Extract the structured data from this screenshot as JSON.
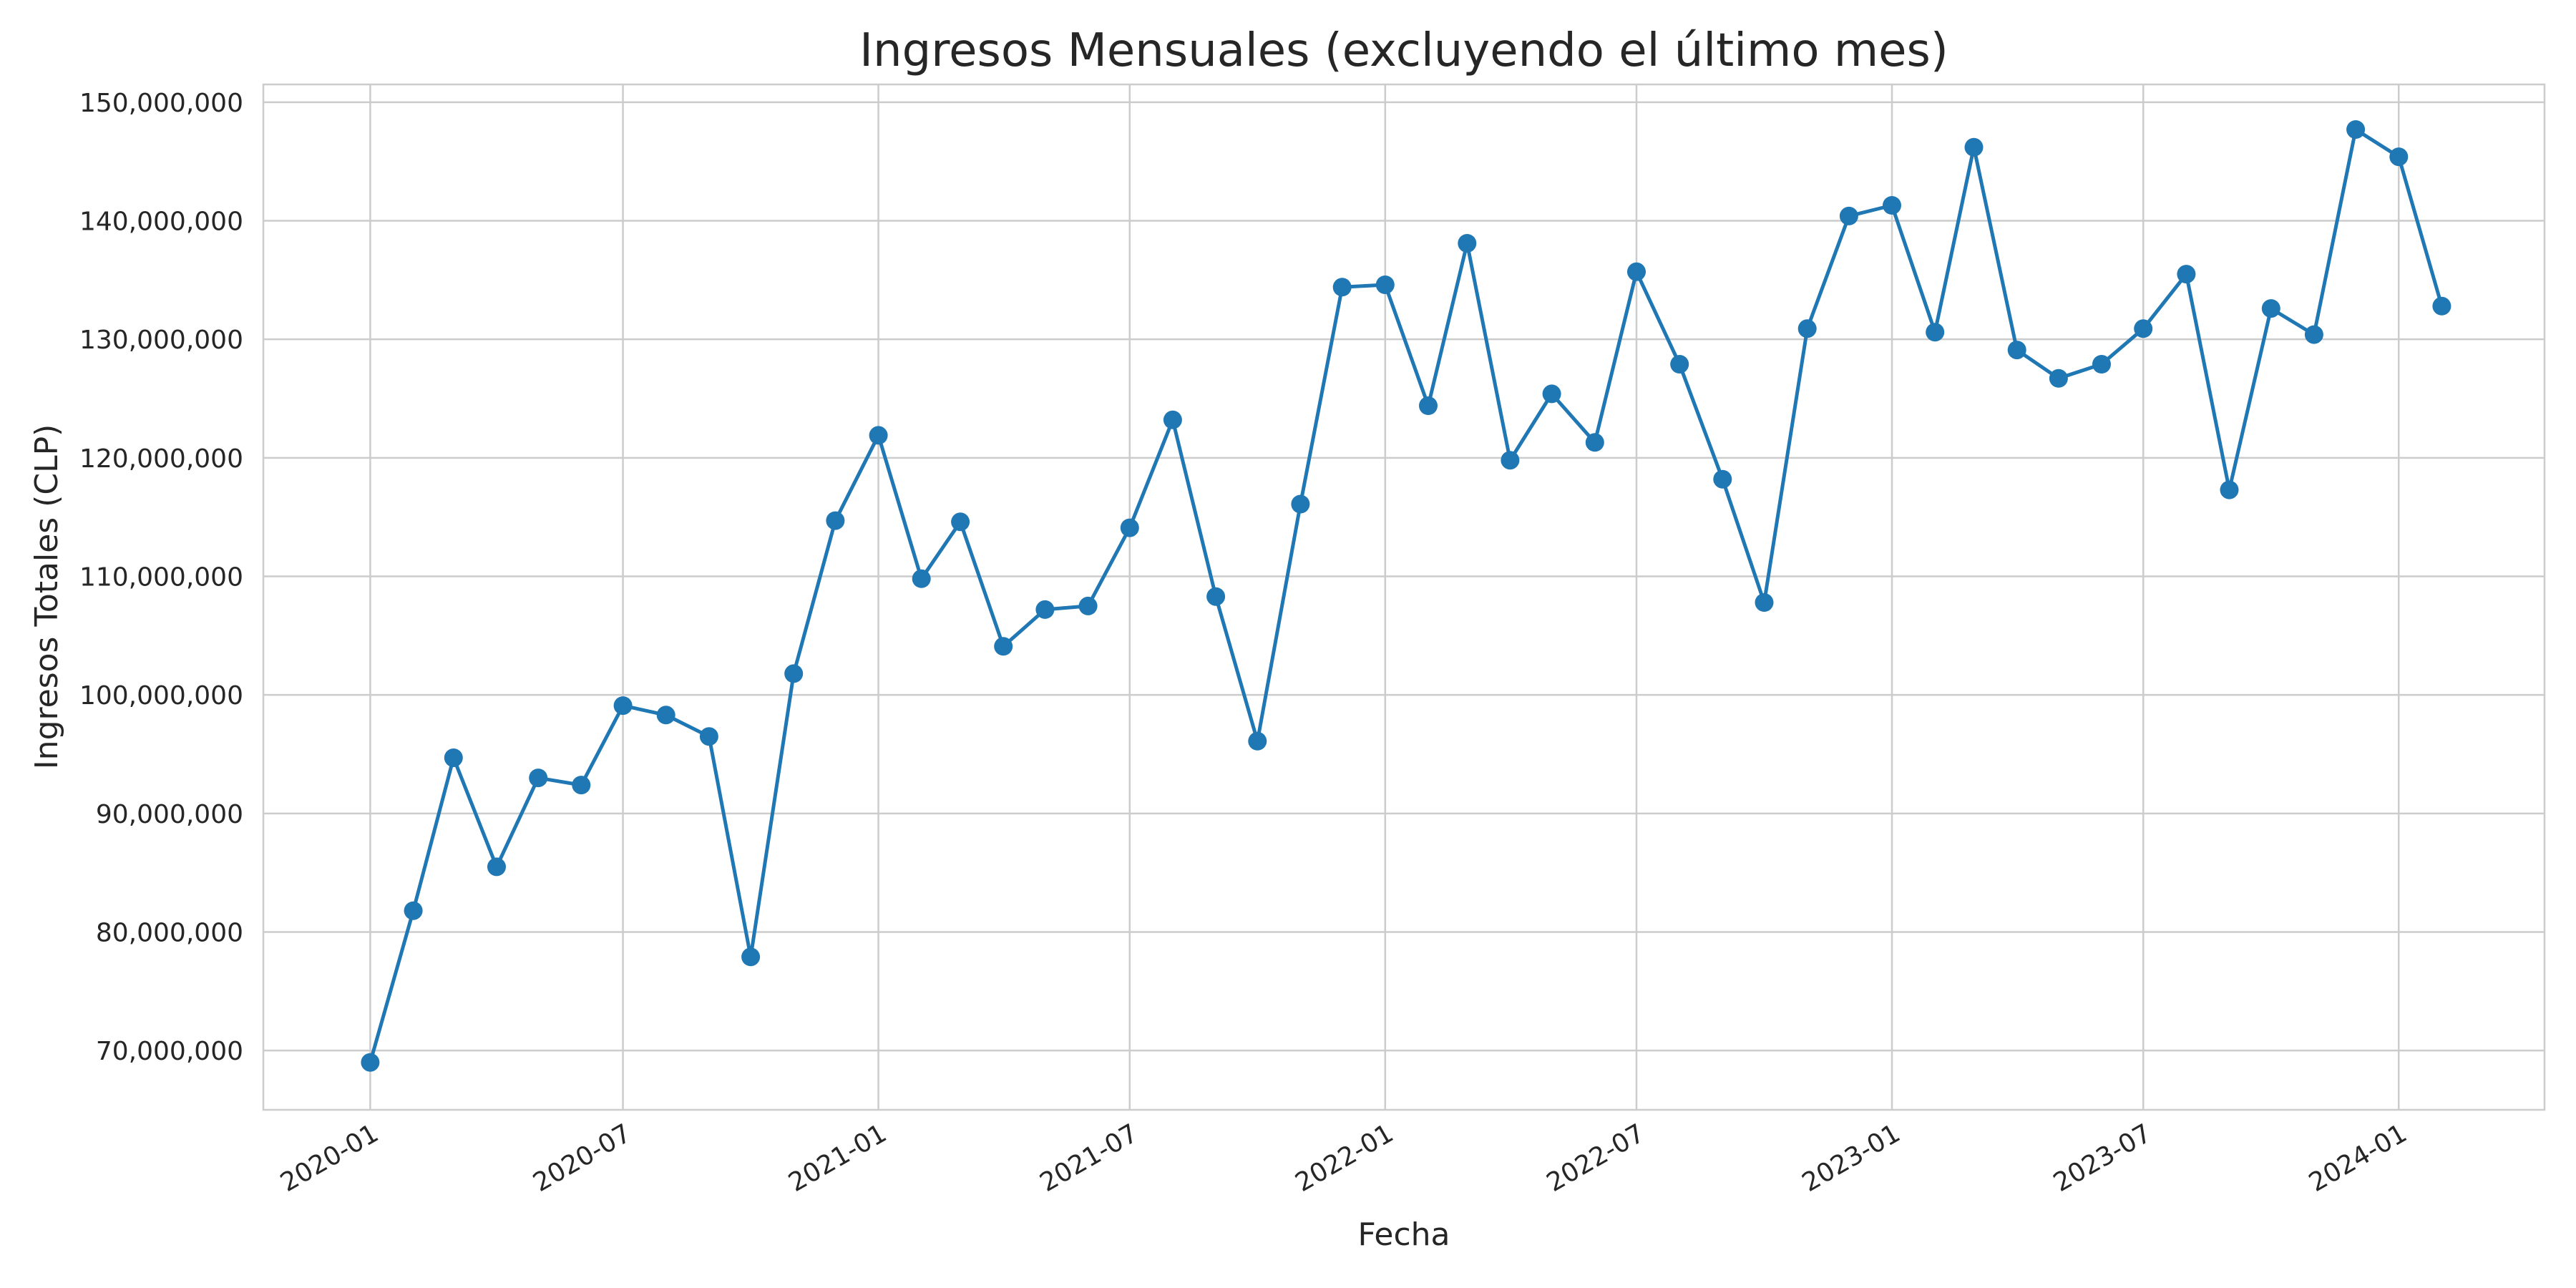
{
  "chart_data": {
    "type": "line",
    "title": "Ingresos Mensuales (excluyendo el último mes)",
    "xlabel": "Fecha",
    "ylabel": "Ingresos Totales (CLP)",
    "ylim": [
      65000000,
      151500000
    ],
    "xlim": [
      "2019-10-16",
      "2024-04-15"
    ],
    "grid": true,
    "color": "#1f77b4",
    "x_ticks": [
      "2020-01",
      "2020-07",
      "2021-01",
      "2021-07",
      "2022-01",
      "2022-07",
      "2023-01",
      "2023-07",
      "2024-01"
    ],
    "y_ticks": [
      "70,000,000",
      "80,000,000",
      "90,000,000",
      "100,000,000",
      "110,000,000",
      "120,000,000",
      "130,000,000",
      "140,000,000",
      "150,000,000"
    ],
    "y_tick_values": [
      70000000,
      80000000,
      90000000,
      100000000,
      110000000,
      120000000,
      130000000,
      140000000,
      150000000
    ],
    "x": [
      "2020-01",
      "2020-02",
      "2020-03",
      "2020-04",
      "2020-05",
      "2020-06",
      "2020-07",
      "2020-08",
      "2020-09",
      "2020-10",
      "2020-11",
      "2020-12",
      "2021-01",
      "2021-02",
      "2021-03",
      "2021-04",
      "2021-05",
      "2021-06",
      "2021-07",
      "2021-08",
      "2021-09",
      "2021-10",
      "2021-11",
      "2021-12",
      "2022-01",
      "2022-02",
      "2022-03",
      "2022-04",
      "2022-05",
      "2022-06",
      "2022-07",
      "2022-08",
      "2022-09",
      "2022-10",
      "2022-11",
      "2022-12",
      "2023-01",
      "2023-02",
      "2023-03",
      "2023-04",
      "2023-05",
      "2023-06",
      "2023-07",
      "2023-08",
      "2023-09",
      "2023-10",
      "2023-11",
      "2023-12",
      "2024-01",
      "2024-02"
    ],
    "values": [
      69000000,
      81800000,
      94700000,
      85500000,
      93000000,
      92400000,
      99100000,
      98300000,
      96500000,
      77900000,
      101800000,
      114700000,
      121900000,
      109800000,
      114600000,
      104100000,
      107200000,
      107500000,
      114100000,
      123200000,
      108300000,
      96100000,
      116100000,
      134400000,
      134600000,
      124400000,
      138100000,
      119800000,
      125400000,
      121300000,
      135700000,
      127900000,
      118200000,
      107800000,
      130900000,
      140400000,
      141300000,
      130600000,
      146200000,
      129100000,
      126700000,
      127900000,
      130900000,
      135500000,
      117300000,
      132600000,
      130400000,
      147700000,
      145400000,
      132800000
    ]
  }
}
